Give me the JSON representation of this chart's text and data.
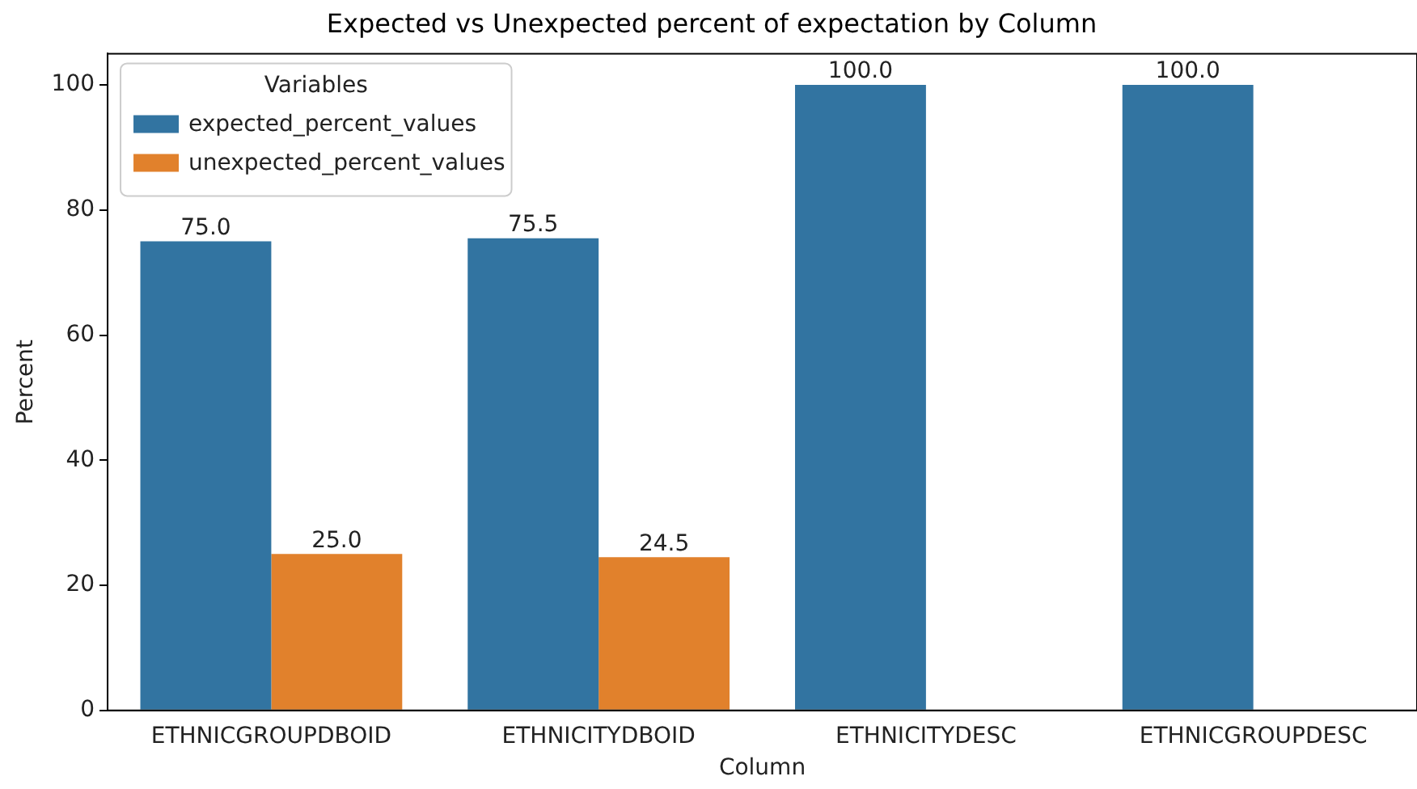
{
  "chart_data": {
    "type": "bar",
    "title": "Expected vs Unexpected percent of expectation by Column",
    "xlabel": "Column",
    "ylabel": "Percent",
    "legend_title": "Variables",
    "legend": "top left",
    "grid": false,
    "categories": [
      "ETHNICGROUPDBOID",
      "ETHNICITYDBOID",
      "ETHNICITYDESC",
      "ETHNICGROUPDESC"
    ],
    "series": [
      {
        "name": "expected_percent_values",
        "color": "#3274a1",
        "values": [
          75.0,
          75.5,
          100.0,
          100.0
        ],
        "value_labels": [
          "75.0",
          "75.5",
          "100.0",
          "100.0"
        ]
      },
      {
        "name": "unexpected_percent_values",
        "color": "#e1812c",
        "values": [
          25.0,
          24.5,
          null,
          null
        ],
        "value_labels": [
          "25.0",
          "24.5",
          null,
          null
        ]
      }
    ],
    "ylim": [
      0,
      105
    ],
    "yticks": [
      0,
      20,
      40,
      60,
      80,
      100
    ]
  }
}
